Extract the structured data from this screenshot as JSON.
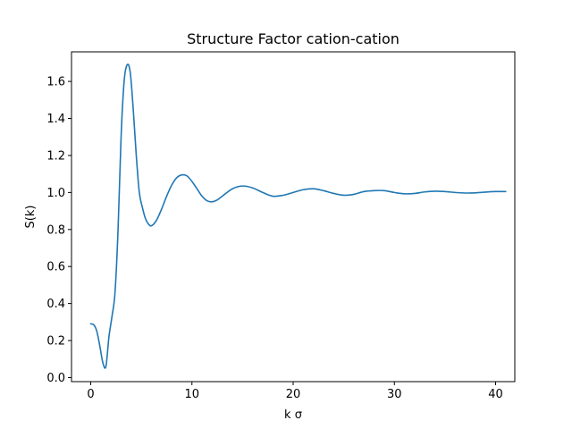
{
  "chart_data": {
    "type": "line",
    "title": "Structure Factor cation-cation",
    "xlabel": "k σ",
    "ylabel": "S(k)",
    "xlim": [
      -1.9,
      41.9
    ],
    "ylim": [
      -0.022,
      1.76
    ],
    "xticks": [
      0,
      10,
      20,
      30,
      40
    ],
    "xtick_labels": [
      "0",
      "10",
      "20",
      "30",
      "40"
    ],
    "yticks": [
      0.0,
      0.2,
      0.4,
      0.6,
      0.8,
      1.0,
      1.2,
      1.4,
      1.6
    ],
    "ytick_labels": [
      "0.0",
      "0.2",
      "0.4",
      "0.6",
      "0.8",
      "1.0",
      "1.2",
      "1.4",
      "1.6"
    ],
    "grid": false,
    "line_color": "#1f77b4",
    "series": [
      {
        "x": [
          0.0,
          0.3,
          0.6,
          0.9,
          1.2,
          1.5,
          1.8,
          2.1,
          2.4,
          2.7,
          3.0,
          3.3,
          3.6,
          3.9,
          4.2,
          4.5,
          4.8,
          5.1,
          5.4,
          5.7,
          6.0,
          6.5,
          7.0,
          7.5,
          8.0,
          8.5,
          9.0,
          9.5,
          10.0,
          10.5,
          11.0,
          11.5,
          12.0,
          12.5,
          13.0,
          14.0,
          15.0,
          16.0,
          17.0,
          18.0,
          19.0,
          20.0,
          21.0,
          22.0,
          23.0,
          24.0,
          25.0,
          26.0,
          27.0,
          28.0,
          29.0,
          30.0,
          31.0,
          32.0,
          33.0,
          34.0,
          35.0,
          36.0,
          37.0,
          38.0,
          39.0,
          40.0,
          41.0
        ],
        "y": [
          0.29,
          0.285,
          0.25,
          0.17,
          0.08,
          0.06,
          0.22,
          0.33,
          0.46,
          0.8,
          1.3,
          1.6,
          1.69,
          1.65,
          1.45,
          1.2,
          1.0,
          0.92,
          0.86,
          0.83,
          0.82,
          0.85,
          0.91,
          0.98,
          1.04,
          1.08,
          1.095,
          1.09,
          1.06,
          1.02,
          0.98,
          0.955,
          0.95,
          0.96,
          0.98,
          1.02,
          1.035,
          1.025,
          1.0,
          0.98,
          0.985,
          1.0,
          1.015,
          1.02,
          1.01,
          0.995,
          0.985,
          0.99,
          1.005,
          1.01,
          1.01,
          1.0,
          0.993,
          0.995,
          1.003,
          1.007,
          1.005,
          1.0,
          0.997,
          0.998,
          1.002,
          1.005,
          1.005
        ]
      }
    ]
  }
}
